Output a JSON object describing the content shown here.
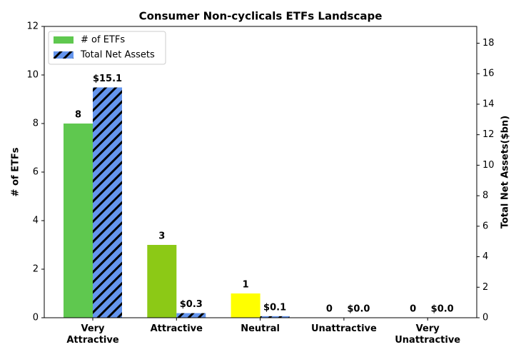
{
  "chart_data": {
    "type": "bar",
    "title": "Consumer Non-cyclicals ETFs Landscape",
    "categories": [
      "Very Attractive",
      "Attractive",
      "Neutral",
      "Unattractive",
      "Very Unattractive"
    ],
    "y_label": "# of ETFs",
    "y2_label": "Total Net Assets($bn)",
    "ylim": [
      0,
      12
    ],
    "yticks": [
      0,
      2,
      4,
      6,
      8,
      10,
      12
    ],
    "y2lim": [
      0,
      19.1
    ],
    "y2ticks": [
      0,
      2,
      4,
      6,
      8,
      10,
      12,
      14,
      16,
      18
    ],
    "legend": "upper left",
    "series": [
      {
        "name": "# of ETFs",
        "color": "#5fc84f",
        "colors": [
          "#5fc84f",
          "#8cc916",
          "#ffff00",
          "#e8a33d",
          "#e0413a"
        ],
        "values": [
          8,
          3,
          1,
          0,
          0
        ]
      },
      {
        "name": "Total Net Assets",
        "color": "#6495ed",
        "hatch": "//",
        "axis": "y2",
        "values": [
          15.1,
          0.3,
          0.1,
          0.0,
          0.0
        ],
        "value_labels": [
          "$15.1",
          "$0.3",
          "$0.1",
          "$0.0",
          "$0.0"
        ]
      }
    ]
  }
}
